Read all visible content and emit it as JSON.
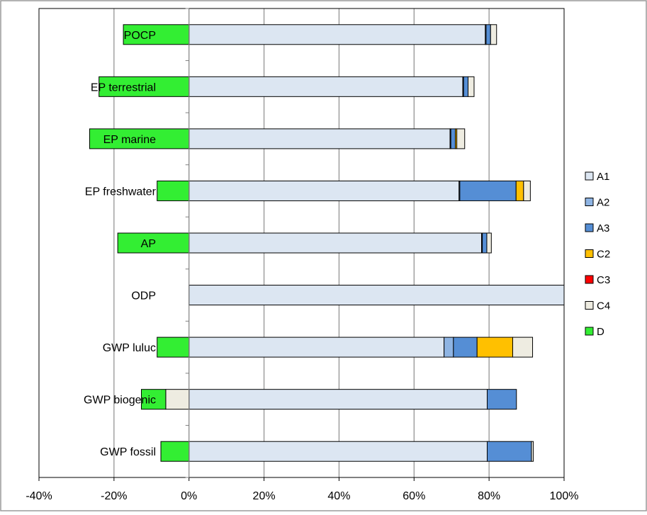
{
  "chart_data": {
    "type": "bar",
    "orientation": "horizontal",
    "stacked": true,
    "title": "",
    "xlabel": "",
    "ylabel": "",
    "xlim": [
      -40,
      100
    ],
    "x_ticks": [
      "-40%",
      "-20%",
      "0%",
      "20%",
      "40%",
      "60%",
      "80%",
      "100%"
    ],
    "grid": "vertical",
    "legend_position": "right",
    "categories": [
      "POCP",
      "EP terrestrial",
      "EP marine",
      "EP freshwater",
      "AP",
      "ODP",
      "GWP luluc",
      "GWP biogenic",
      "GWP fossil"
    ],
    "series": [
      {
        "name": "A1",
        "color": "#dce6f2",
        "values": [
          79,
          73,
          69.6,
          72,
          78,
          100,
          68,
          79.5,
          79.5
        ]
      },
      {
        "name": "A2",
        "color": "#8eb4e3",
        "values": [
          0.2,
          0.2,
          0.2,
          0.2,
          0.2,
          0,
          2.5,
          0,
          0
        ]
      },
      {
        "name": "A3",
        "color": "#558ed5",
        "values": [
          1.2,
          1.2,
          1.2,
          15,
          1.2,
          0,
          6.3,
          7.8,
          11.8
        ]
      },
      {
        "name": "C2",
        "color": "#ffc000",
        "values": [
          0,
          0,
          0.4,
          2,
          0,
          0,
          9.5,
          0,
          0
        ]
      },
      {
        "name": "C3",
        "color": "#ff0000",
        "values": [
          0,
          0,
          0,
          0,
          0,
          0,
          0,
          0,
          0
        ]
      },
      {
        "name": "C4",
        "color": "#eeece1",
        "values": [
          1.6,
          1.6,
          2.1,
          1.8,
          1.2,
          0,
          5.3,
          -6.2,
          0.5
        ]
      },
      {
        "name": "D",
        "color": "#33ee33",
        "values": [
          -17.5,
          -24,
          -26.5,
          -8.5,
          -19,
          0,
          -8.5,
          -6.5,
          -7.5
        ]
      }
    ]
  }
}
